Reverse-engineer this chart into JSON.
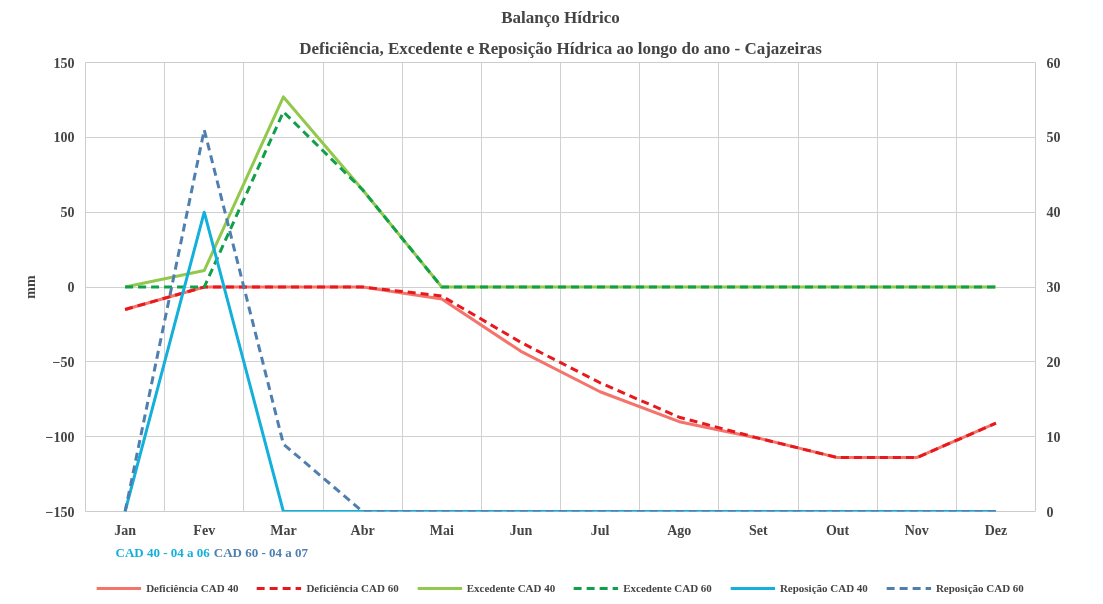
{
  "chart_data": {
    "type": "line",
    "title": "Balanço Hídrico",
    "subtitle": "Deficiência, Excedente e Reposição Hídrica ao longo do ano - Cajazeiras",
    "ylabel": "mm",
    "categories": [
      "Jan",
      "Fev",
      "Mar",
      "Abr",
      "Mai",
      "Jun",
      "Jul",
      "Ago",
      "Set",
      "Out",
      "Nov",
      "Dez"
    ],
    "ylim": [
      -150,
      150
    ],
    "yticks": [
      -150,
      -100,
      -50,
      0,
      50,
      100,
      150
    ],
    "y2lim": [
      0,
      60
    ],
    "y2ticks": [
      0,
      10,
      20,
      30,
      40,
      50,
      60
    ],
    "grid": true,
    "legend": "bottom",
    "series": [
      {
        "name": "Deficiência CAD 40",
        "color": "#f4736b",
        "line_style": "solid",
        "values": [
          -15,
          0,
          0,
          0,
          -8,
          -43,
          -70,
          -90,
          -101,
          -114,
          -114,
          -91
        ]
      },
      {
        "name": "Deficiência CAD 60",
        "color": "#e8191c",
        "line_style": "dashed",
        "values": [
          -15,
          0,
          0,
          0,
          -6,
          -37,
          -64,
          -87,
          -101,
          -114,
          -114,
          -91
        ]
      },
      {
        "name": "Excedente CAD 40",
        "color": "#92c94d",
        "line_style": "solid",
        "values": [
          0,
          11,
          127,
          65,
          0,
          0,
          0,
          0,
          0,
          0,
          0,
          0
        ]
      },
      {
        "name": "Excedente CAD 60",
        "color": "#10a04a",
        "line_style": "dashed",
        "values": [
          0,
          0,
          117,
          65,
          0,
          0,
          0,
          0,
          0,
          0,
          0,
          0
        ]
      },
      {
        "name": "Reposição CAD 40",
        "color": "#14b0dc",
        "line_style": "solid",
        "axis": "y2",
        "values": [
          0,
          40,
          0,
          0,
          0,
          0,
          0,
          0,
          0,
          0,
          0,
          0
        ]
      },
      {
        "name": "Reposição CAD 60",
        "color": "#4f7fae",
        "line_style": "dashed",
        "axis": "y2",
        "values": [
          0,
          51,
          9,
          0,
          0,
          0,
          0,
          0,
          0,
          0,
          0,
          0
        ]
      }
    ],
    "annotations": [
      "CAD 40 - 04 a 06",
      "CAD 60 - 04 a 07"
    ]
  }
}
